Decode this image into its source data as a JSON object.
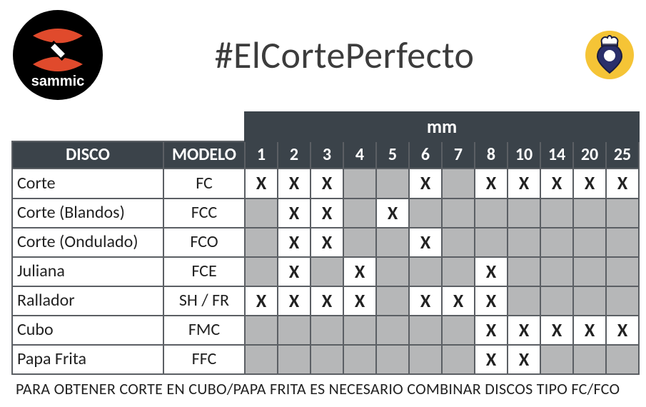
{
  "title": "#ElCortePerfecto",
  "logo_left": {
    "brand_top": "S",
    "brand_bottom": "sammic",
    "bg": "#000000",
    "accent": "#e04a2c",
    "text": "#ffffff"
  },
  "logo_right": {
    "bg": "#f5c436"
  },
  "table": {
    "mm_label": "mm",
    "disco_label": "DISCO",
    "modelo_label": "MODELO",
    "sizes": [
      "1",
      "2",
      "3",
      "4",
      "5",
      "6",
      "7",
      "8",
      "10",
      "14",
      "20",
      "25"
    ],
    "rows": [
      {
        "disco": "Corte",
        "modelo": "FC",
        "marks": [
          1,
          1,
          1,
          0,
          0,
          1,
          0,
          1,
          1,
          1,
          1,
          1
        ]
      },
      {
        "disco": "Corte (Blandos)",
        "modelo": "FCC",
        "marks": [
          0,
          1,
          1,
          0,
          1,
          0,
          0,
          0,
          0,
          0,
          0,
          0
        ]
      },
      {
        "disco": "Corte (Ondulado)",
        "modelo": "FCO",
        "marks": [
          0,
          1,
          1,
          0,
          0,
          1,
          0,
          0,
          0,
          0,
          0,
          0
        ]
      },
      {
        "disco": "Juliana",
        "modelo": "FCE",
        "marks": [
          0,
          1,
          0,
          1,
          0,
          0,
          0,
          1,
          0,
          0,
          0,
          0
        ]
      },
      {
        "disco": "Rallador",
        "modelo": "SH / FR",
        "marks": [
          1,
          1,
          1,
          1,
          0,
          1,
          1,
          1,
          0,
          0,
          0,
          0
        ]
      },
      {
        "disco": "Cubo",
        "modelo": "FMC",
        "marks": [
          0,
          0,
          0,
          0,
          0,
          0,
          0,
          1,
          1,
          1,
          1,
          1
        ]
      },
      {
        "disco": "Papa Frita",
        "modelo": "FFC",
        "marks": [
          0,
          0,
          0,
          0,
          0,
          0,
          0,
          1,
          1,
          0,
          0,
          0
        ]
      }
    ],
    "header_bg": "#3b434a",
    "header_fg": "#ffffff",
    "grid_color": "#5b5f64",
    "empty_bg": "#b6b7b8",
    "mark_bg": "#ffffff",
    "mark_glyph": "X"
  },
  "footnote": "PARA OBTENER CORTE EN CUBO/PAPA FRITA ES NECESARIO COMBINAR DISCOS TIPO FC/FCO"
}
